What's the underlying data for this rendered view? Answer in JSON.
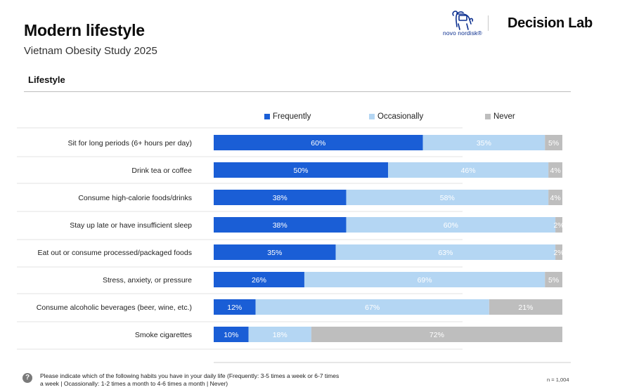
{
  "header": {
    "title": "Modern lifestyle",
    "subtitle": "Vietnam Obesity Study 2025",
    "brand_logo_text": "novo nordisk®",
    "partner_logo_text": "Decision Lab"
  },
  "section": {
    "title": "Lifestyle"
  },
  "footer": {
    "question_icon": "?",
    "note": "Please indicate which of the following habits you have in your daily life (Frequently: 3-5 times a week or 6-7 times a week | Ocassionally: 1-2 times a month to 4-6 times a month | Never)",
    "sample": "n = 1,004"
  },
  "colors": {
    "frequently": "#1a5ed6",
    "occasionally": "#b4d6f3",
    "never": "#bebebe",
    "brand_blue": "#0b2f8f"
  },
  "chart_data": {
    "type": "bar",
    "orientation": "horizontal",
    "stacked": true,
    "percent": true,
    "legend_position": "top",
    "categories": [
      "Sit for long periods (6+ hours per day)",
      "Drink tea or coffee",
      "Consume high-calorie foods/drinks",
      "Stay up late or have insufficient sleep",
      "Eat out or consume processed/packaged foods",
      "Stress, anxiety, or pressure",
      "Consume alcoholic beverages (beer, wine, etc.)",
      "Smoke cigarettes"
    ],
    "series": [
      {
        "name": "Frequently",
        "color": "#1a5ed6",
        "values": [
          60,
          50,
          38,
          38,
          35,
          26,
          12,
          10
        ]
      },
      {
        "name": "Occasionally",
        "color": "#b4d6f3",
        "values": [
          35,
          46,
          58,
          60,
          63,
          69,
          67,
          18
        ]
      },
      {
        "name": "Never",
        "color": "#bebebe",
        "values": [
          5,
          4,
          4,
          2,
          2,
          5,
          21,
          72
        ]
      }
    ],
    "value_suffix": "%"
  }
}
